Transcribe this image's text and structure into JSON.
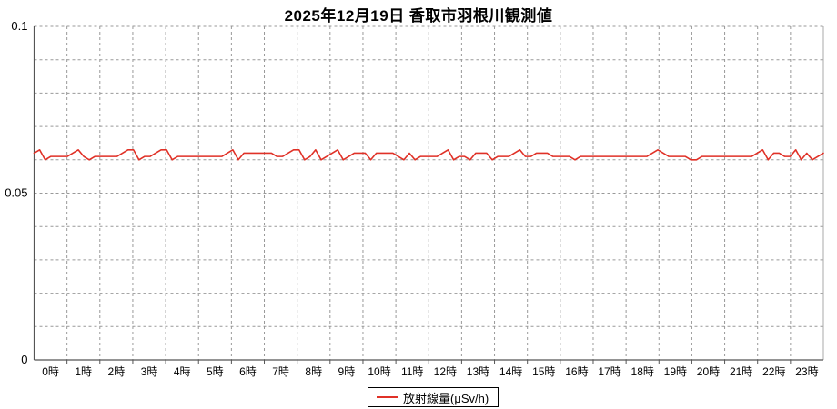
{
  "title": "2025年12月19日 香取市羽根川観測値",
  "legend": {
    "label": "放射線量(μSv/h)"
  },
  "colors": {
    "line": "#e03127",
    "grid": "#999999",
    "axis": "#555555",
    "label": "#000000",
    "border": "#aaaaaa",
    "background": "#ffffff"
  },
  "chart_data": {
    "type": "line",
    "title": "2025年12月19日 香取市羽根川観測値",
    "xlabel": "",
    "ylabel": "",
    "ylim": [
      0,
      0.1
    ],
    "y_grid_step": 0.01,
    "x_hours": 24,
    "grid": "dashed",
    "legend_position": "bottom-center",
    "x_categories": [
      "0時",
      "1時",
      "2時",
      "3時",
      "4時",
      "5時",
      "6時",
      "7時",
      "8時",
      "9時",
      "10時",
      "11時",
      "12時",
      "13時",
      "14時",
      "15時",
      "16時",
      "17時",
      "18時",
      "19時",
      "20時",
      "21時",
      "22時",
      "23時"
    ],
    "y_ticks": [
      {
        "value": 0,
        "label": "0"
      },
      {
        "value": 0.05,
        "label": "0.05"
      },
      {
        "value": 0.1,
        "label": "0.1"
      }
    ],
    "series": [
      {
        "name": "放射線量(μSv/h)",
        "unit": "μSv/h",
        "interval_minutes": 10,
        "values": [
          0.062,
          0.063,
          0.06,
          0.061,
          0.061,
          0.061,
          0.061,
          0.062,
          0.063,
          0.061,
          0.06,
          0.061,
          0.061,
          0.061,
          0.061,
          0.061,
          0.062,
          0.063,
          0.063,
          0.06,
          0.061,
          0.061,
          0.062,
          0.063,
          0.063,
          0.06,
          0.061,
          0.061,
          0.061,
          0.061,
          0.061,
          0.061,
          0.061,
          0.061,
          0.061,
          0.062,
          0.063,
          0.06,
          0.062,
          0.062,
          0.062,
          0.062,
          0.062,
          0.062,
          0.061,
          0.061,
          0.062,
          0.063,
          0.063,
          0.06,
          0.061,
          0.063,
          0.06,
          0.061,
          0.062,
          0.063,
          0.06,
          0.061,
          0.062,
          0.062,
          0.062,
          0.06,
          0.062,
          0.062,
          0.062,
          0.062,
          0.061,
          0.06,
          0.062,
          0.06,
          0.061,
          0.061,
          0.061,
          0.061,
          0.062,
          0.063,
          0.06,
          0.061,
          0.061,
          0.06,
          0.062,
          0.062,
          0.062,
          0.06,
          0.061,
          0.061,
          0.061,
          0.062,
          0.063,
          0.061,
          0.061,
          0.062,
          0.062,
          0.062,
          0.061,
          0.061,
          0.061,
          0.061,
          0.06,
          0.061,
          0.061,
          0.061,
          0.061,
          0.061,
          0.061,
          0.061,
          0.061,
          0.061,
          0.061,
          0.061,
          0.061,
          0.061,
          0.062,
          0.063,
          0.062,
          0.061,
          0.061,
          0.061,
          0.061,
          0.06,
          0.06,
          0.061,
          0.061,
          0.061,
          0.061,
          0.061,
          0.061,
          0.061,
          0.061,
          0.061,
          0.061,
          0.062,
          0.063,
          0.06,
          0.062,
          0.062,
          0.061,
          0.061,
          0.063,
          0.06,
          0.062,
          0.06,
          0.061,
          0.062
        ]
      }
    ]
  }
}
